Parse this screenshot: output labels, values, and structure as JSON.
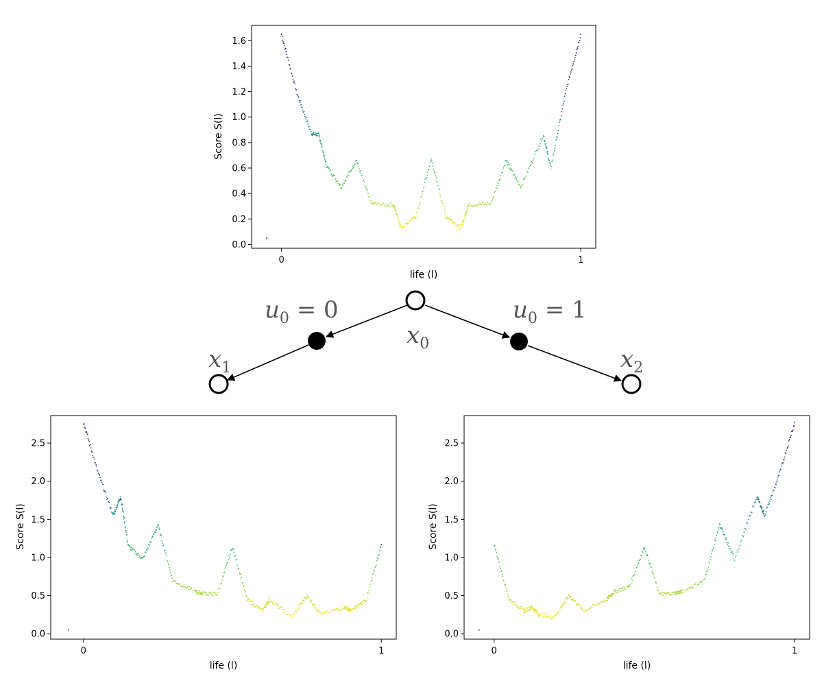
{
  "chart_data": [
    {
      "type": "scatter",
      "id": "top",
      "xlabel": "life (l)",
      "ylabel": "Score S(l)",
      "xlim": [
        -0.1,
        1.05
      ],
      "ylim": [
        -0.03,
        1.72
      ],
      "xticks": [
        0,
        1
      ],
      "xtick_labels": [
        "0",
        "1"
      ],
      "yticks": [
        0.0,
        0.2,
        0.4,
        0.6,
        0.8,
        1.0,
        1.2,
        1.4,
        1.6
      ],
      "ytick_labels": [
        "0.0",
        "0.2",
        "0.4",
        "0.6",
        "0.8",
        "1.0",
        "1.2",
        "1.4",
        "1.6"
      ],
      "outlier": {
        "x": -0.05,
        "y": 0.05
      },
      "curve_samples": {
        "x": [
          0.0,
          0.05,
          0.1,
          0.125,
          0.15,
          0.2,
          0.25,
          0.3,
          0.375,
          0.4,
          0.45,
          0.5,
          0.55,
          0.6,
          0.625,
          0.7,
          0.75,
          0.8,
          0.875,
          0.9,
          0.95,
          1.0
        ],
        "y": [
          1.65,
          1.2,
          0.87,
          0.86,
          0.62,
          0.45,
          0.66,
          0.32,
          0.31,
          0.13,
          0.22,
          0.67,
          0.22,
          0.13,
          0.31,
          0.32,
          0.66,
          0.45,
          0.86,
          0.6,
          1.2,
          1.65
        ]
      },
      "style": {
        "colormap": "viridis",
        "marker": "dot"
      }
    },
    {
      "type": "scatter",
      "id": "bottom-left",
      "xlabel": "life (l)",
      "ylabel": "Score S(l)",
      "xlim": [
        -0.11,
        1.05
      ],
      "ylim": [
        -0.07,
        2.86
      ],
      "xticks": [
        0,
        1
      ],
      "xtick_labels": [
        "0",
        "1"
      ],
      "yticks": [
        0.0,
        0.5,
        1.0,
        1.5,
        2.0,
        2.5
      ],
      "ytick_labels": [
        "0.0",
        "0.5",
        "1.0",
        "1.5",
        "2.0",
        "2.5"
      ],
      "outlier": {
        "x": -0.05,
        "y": 0.05
      },
      "curve_samples": {
        "x": [
          0.0,
          0.05,
          0.1,
          0.125,
          0.15,
          0.2,
          0.25,
          0.3,
          0.375,
          0.4,
          0.45,
          0.5,
          0.55,
          0.6,
          0.625,
          0.7,
          0.75,
          0.8,
          0.875,
          0.9,
          0.95,
          1.0
        ],
        "y": [
          2.77,
          2.1,
          1.55,
          1.8,
          1.15,
          0.98,
          1.43,
          0.7,
          0.55,
          0.53,
          0.52,
          1.14,
          0.45,
          0.3,
          0.45,
          0.22,
          0.5,
          0.25,
          0.35,
          0.3,
          0.45,
          1.17
        ]
      },
      "style": {
        "colormap": "viridis",
        "marker": "dot"
      }
    },
    {
      "type": "scatter",
      "id": "bottom-right",
      "xlabel": "life (l)",
      "ylabel": "Score S(l)",
      "xlim": [
        -0.1,
        1.05
      ],
      "ylim": [
        -0.07,
        2.86
      ],
      "xticks": [
        0,
        1
      ],
      "xtick_labels": [
        "0",
        "1"
      ],
      "yticks": [
        0.0,
        0.5,
        1.0,
        1.5,
        2.0,
        2.5
      ],
      "ytick_labels": [
        "0.0",
        "0.5",
        "1.0",
        "1.5",
        "2.0",
        "2.5"
      ],
      "outlier": {
        "x": -0.05,
        "y": 0.05
      },
      "curve_samples": {
        "x": [
          0.0,
          0.05,
          0.1,
          0.125,
          0.15,
          0.2,
          0.25,
          0.3,
          0.375,
          0.4,
          0.45,
          0.5,
          0.55,
          0.6,
          0.625,
          0.7,
          0.75,
          0.8,
          0.875,
          0.9,
          0.95,
          1.0
        ],
        "y": [
          1.17,
          0.45,
          0.3,
          0.35,
          0.25,
          0.22,
          0.5,
          0.3,
          0.45,
          0.55,
          0.62,
          1.14,
          0.52,
          0.53,
          0.55,
          0.7,
          1.43,
          0.98,
          1.8,
          1.55,
          2.1,
          2.77
        ]
      },
      "style": {
        "colormap": "viridis",
        "marker": "dot"
      }
    }
  ],
  "diagram": {
    "root": {
      "var": "x",
      "sub": "0"
    },
    "left_child": {
      "var": "x",
      "sub": "1"
    },
    "right_child": {
      "var": "x",
      "sub": "2"
    },
    "left_action": {
      "var": "u",
      "sub": "0",
      "value": "0"
    },
    "right_action": {
      "var": "u",
      "sub": "0",
      "value": "1"
    },
    "node_color": "#000000",
    "text_color": "#555555"
  }
}
